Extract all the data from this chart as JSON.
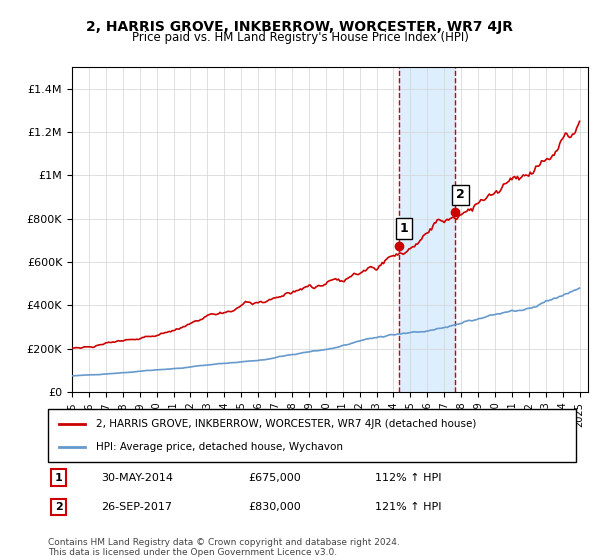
{
  "title": "2, HARRIS GROVE, INKBERROW, WORCESTER, WR7 4JR",
  "subtitle": "Price paid vs. HM Land Registry's House Price Index (HPI)",
  "hpi_label": "HPI: Average price, detached house, Wychavon",
  "property_label": "2, HARRIS GROVE, INKBERROW, WORCESTER, WR7 4JR (detached house)",
  "transaction1_date": "30-MAY-2014",
  "transaction1_price": 675000,
  "transaction1_hpi": "112% ↑ HPI",
  "transaction2_date": "26-SEP-2017",
  "transaction2_price": 830000,
  "transaction2_hpi": "121% ↑ HPI",
  "footnote": "Contains HM Land Registry data © Crown copyright and database right 2024.\nThis data is licensed under the Open Government Licence v3.0.",
  "red_color": "#cc0000",
  "blue_color": "#6699cc",
  "highlight_color": "#ddeeff",
  "ylim_max": 1500000,
  "yticks": [
    0,
    200000,
    400000,
    600000,
    800000,
    1000000,
    1200000,
    1400000
  ]
}
